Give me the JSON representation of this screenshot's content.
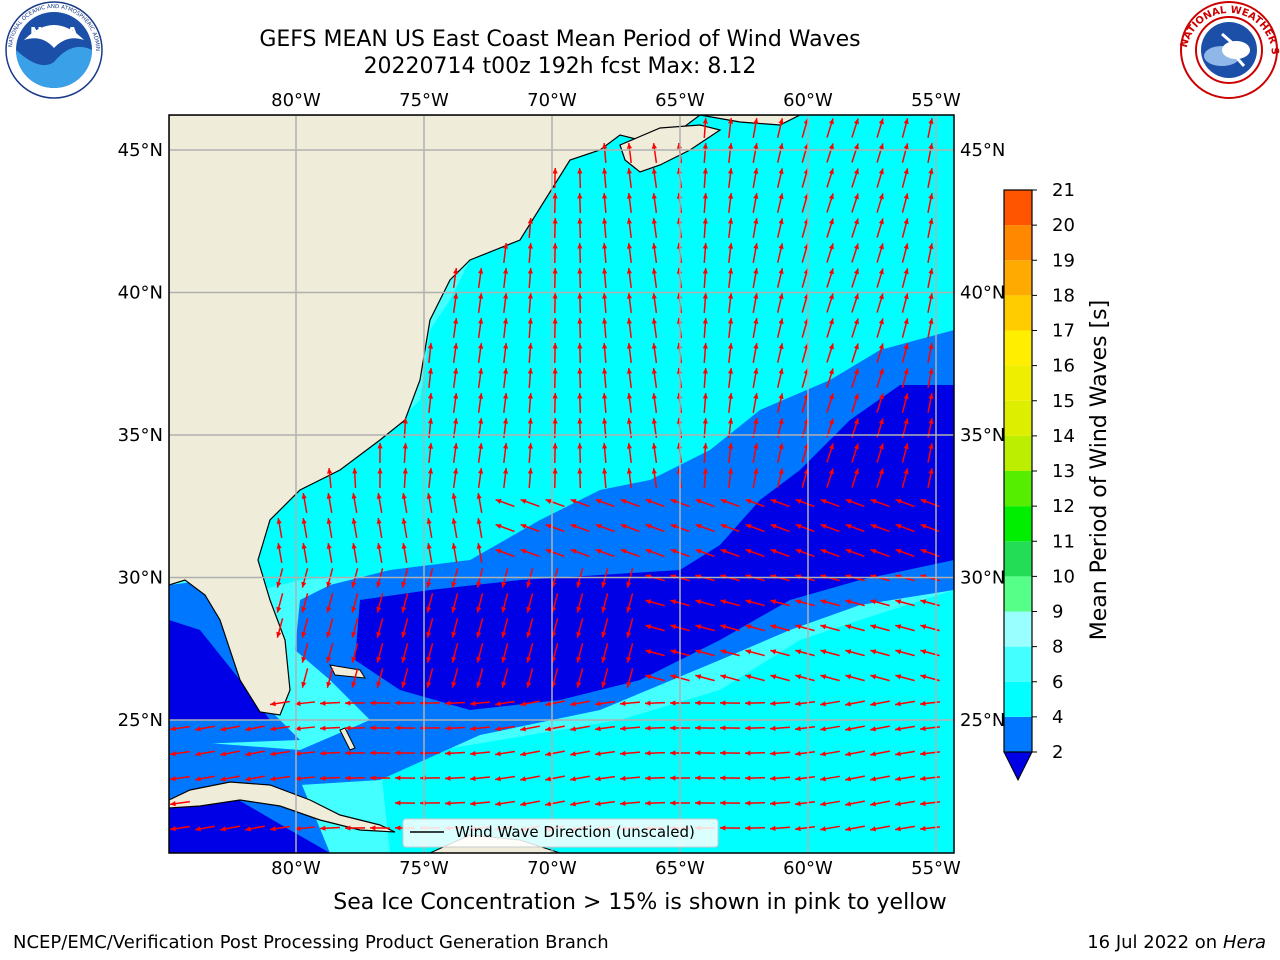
{
  "title_line1": "GEFS MEAN US East Coast Mean Period of Wind Waves",
  "title_line2": "20220714 t00z 192h fcst   Max: 8.12",
  "logos": {
    "left": "noaa-logo",
    "right": "nws-logo",
    "left_text": "NOAA",
    "left_ring_text": "NATIONAL OCEANIC AND ATMOSPHERIC ADMINISTRATION · U.S. DEPARTMENT OF COMMERCE",
    "right_ring_text": "NATIONAL WEATHER SERVICE"
  },
  "map": {
    "lon_range": [
      -85,
      -54
    ],
    "lat_range": [
      20.5,
      46
    ],
    "lon_ticks": [
      "80°W",
      "75°W",
      "70°W",
      "65°W",
      "60°W",
      "55°W"
    ],
    "lat_ticks": [
      "45°N",
      "40°N",
      "35°N",
      "30°N",
      "25°N"
    ],
    "legend_label": "Wind Wave Direction (unscaled)",
    "colors": {
      "land": "#efedd9",
      "band_2_4": "#0077ff",
      "band_0_2": "#0000e6",
      "band_4_6": "#00ffff",
      "band_6_8": "#44ffff",
      "arrows": "#ff0000",
      "grid": "#b0b0b0"
    }
  },
  "colorbar": {
    "label": "Mean Period of Wind Waves [s]",
    "ticks": [
      "2",
      "4",
      "6",
      "8",
      "9",
      "10",
      "11",
      "12",
      "13",
      "14",
      "15",
      "16",
      "17",
      "18",
      "19",
      "20",
      "21"
    ],
    "colors": [
      "#0077ff",
      "#00ffff",
      "#44ffff",
      "#99ffff",
      "#55ff88",
      "#22dd55",
      "#00ee00",
      "#55ee00",
      "#bbee00",
      "#ddee00",
      "#eeee00",
      "#ffee00",
      "#ffcc00",
      "#ffaa00",
      "#ff8800",
      "#ff5500",
      "#ff2200",
      "#ff0000"
    ],
    "under_color": "#0000e6"
  },
  "note": "Sea Ice Concentration > 15% is shown in pink to yellow",
  "footer_left": "NCEP/EMC/Verification Post Processing Product Generation Branch",
  "footer_right_date": "16 Jul 2022 on ",
  "footer_right_host": "Hera"
}
